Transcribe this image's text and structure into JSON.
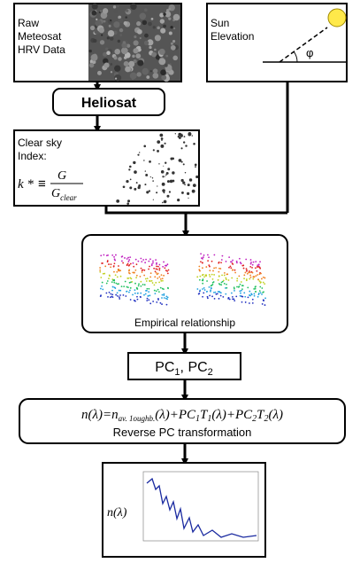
{
  "raw_box": {
    "lines": [
      "Raw",
      "Meteosat",
      "HRV Data"
    ]
  },
  "sun_box": {
    "lines": [
      "Sun",
      "Elevation"
    ],
    "angle": "φ"
  },
  "heliosat": {
    "label": "Heliosat"
  },
  "clear_sky": {
    "lines": [
      "Clear sky",
      "Index:"
    ],
    "formula": {
      "lhs": "k *",
      "rel": "≡",
      "numerator": "G",
      "denominator": "G",
      "denominator_sub": "clear"
    }
  },
  "empirical": {
    "label": "Empirical relationship"
  },
  "pc_box": {
    "parts": [
      "PC",
      "1",
      ", PC",
      "2"
    ]
  },
  "reverse": {
    "equation": [
      "n(λ)=n",
      "av. 1oughb.",
      "(λ)+PC",
      "1",
      "T",
      "1",
      "(λ)+PC",
      "2",
      "T",
      "2",
      "(λ)"
    ],
    "label": "Reverse PC transformation"
  },
  "output": {
    "label": "n(λ)"
  }
}
